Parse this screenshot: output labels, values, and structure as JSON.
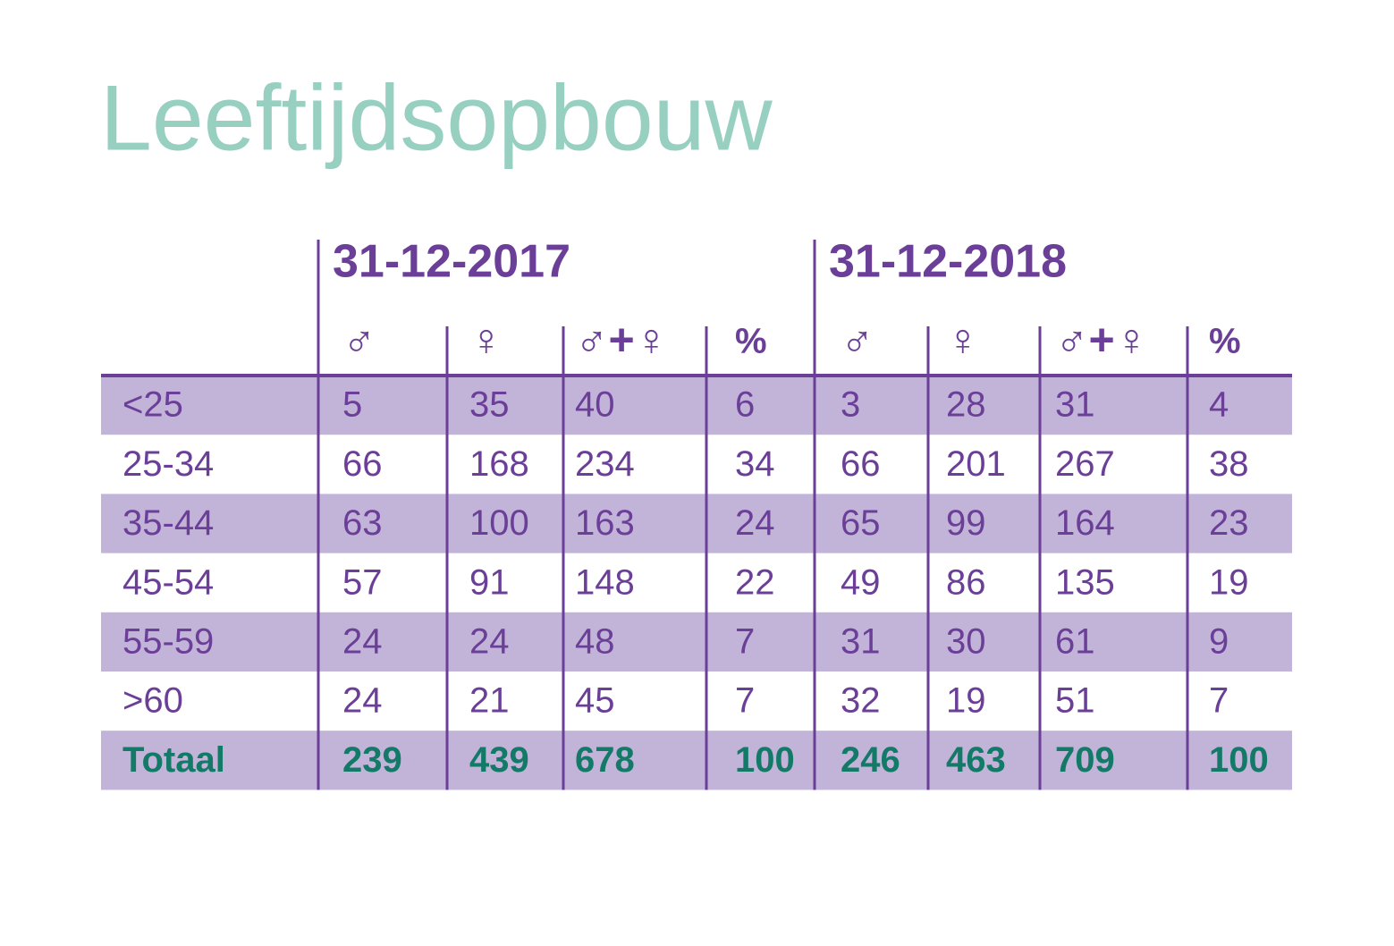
{
  "title": "Leeftijdsopbouw",
  "table": {
    "groups": [
      "31-12-2017",
      "31-12-2018"
    ],
    "columns": [
      "♂",
      "♀",
      "♂+♀",
      "%",
      "♂",
      "♀",
      "♂+♀",
      "%"
    ],
    "rows": [
      [
        "<25",
        5,
        35,
        40,
        6,
        3,
        28,
        31,
        4
      ],
      [
        "25-34",
        66,
        168,
        234,
        34,
        66,
        201,
        267,
        38
      ],
      [
        "35-44",
        63,
        100,
        163,
        24,
        65,
        99,
        164,
        23
      ],
      [
        "45-54",
        57,
        91,
        148,
        22,
        49,
        86,
        135,
        19
      ],
      [
        "55-59",
        24,
        24,
        48,
        7,
        31,
        30,
        61,
        9
      ],
      [
        ">60",
        24,
        21,
        45,
        7,
        32,
        19,
        51,
        7
      ]
    ],
    "total": [
      "Totaal",
      239,
      439,
      678,
      100,
      246,
      463,
      709,
      100
    ]
  }
}
